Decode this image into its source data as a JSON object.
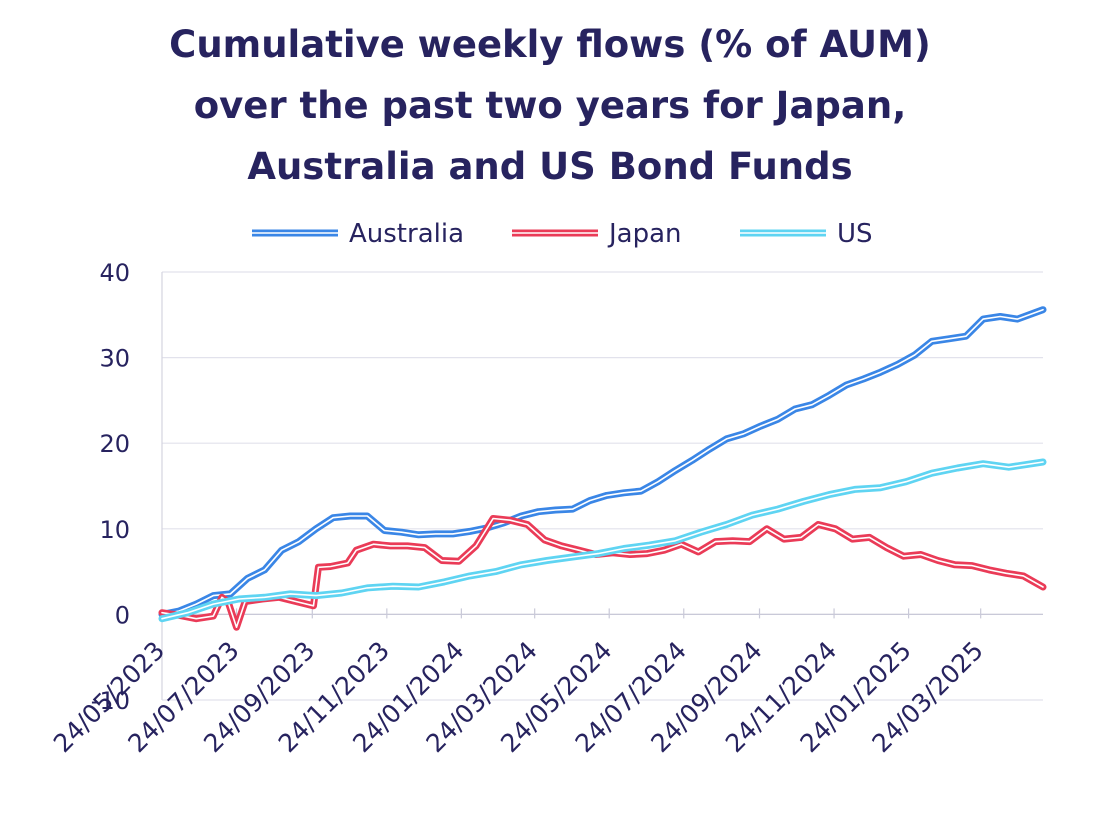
{
  "chart_data": {
    "type": "line",
    "title_lines": [
      "Cumulative weekly flows (% of AUM)",
      "over the past two years for Japan,",
      "Australia and US Bond Funds"
    ],
    "xlabel": "",
    "ylabel": "",
    "ylim": [
      -10,
      40
    ],
    "yticks": [
      -10,
      0,
      10,
      20,
      30,
      40
    ],
    "ytick_labels": [
      "-10",
      "0",
      "10",
      "20",
      "30",
      "40"
    ],
    "x_range": [
      "2023-05-24",
      "2025-05-14"
    ],
    "xticks": [
      "2023-05-24",
      "2023-07-24",
      "2023-09-24",
      "2023-11-24",
      "2024-01-24",
      "2024-03-24",
      "2024-05-24",
      "2024-07-24",
      "2024-09-24",
      "2024-11-24",
      "2025-01-24",
      "2025-03-24"
    ],
    "xtick_labels": [
      "24/05/2023",
      "24/07/2023",
      "24/09/2023",
      "24/11/2023",
      "24/01/2024",
      "24/03/2024",
      "24/05/2024",
      "24/07/2024",
      "24/09/2024",
      "24/11/2024",
      "24/01/2025",
      "24/03/2025"
    ],
    "grid": "horizontal",
    "legend_position": "top",
    "series": [
      {
        "name": "Australia",
        "color": "#3a86e6",
        "points": [
          [
            "2023-05-24",
            0.0
          ],
          [
            "2023-06-07",
            0.4
          ],
          [
            "2023-06-21",
            1.2
          ],
          [
            "2023-07-05",
            2.2
          ],
          [
            "2023-07-19",
            2.4
          ],
          [
            "2023-08-02",
            4.2
          ],
          [
            "2023-08-16",
            5.2
          ],
          [
            "2023-08-30",
            7.5
          ],
          [
            "2023-09-13",
            8.5
          ],
          [
            "2023-09-27",
            10.0
          ],
          [
            "2023-10-11",
            11.3
          ],
          [
            "2023-10-25",
            11.5
          ],
          [
            "2023-11-08",
            11.5
          ],
          [
            "2023-11-22",
            9.8
          ],
          [
            "2023-12-06",
            9.6
          ],
          [
            "2023-12-20",
            9.3
          ],
          [
            "2024-01-03",
            9.4
          ],
          [
            "2024-01-17",
            9.4
          ],
          [
            "2024-01-31",
            9.7
          ],
          [
            "2024-02-14",
            10.1
          ],
          [
            "2024-02-28",
            10.7
          ],
          [
            "2024-03-13",
            11.5
          ],
          [
            "2024-03-27",
            12.0
          ],
          [
            "2024-04-10",
            12.2
          ],
          [
            "2024-04-24",
            12.3
          ],
          [
            "2024-05-08",
            13.3
          ],
          [
            "2024-05-22",
            13.9
          ],
          [
            "2024-06-05",
            14.2
          ],
          [
            "2024-06-19",
            14.4
          ],
          [
            "2024-07-03",
            15.5
          ],
          [
            "2024-07-17",
            16.8
          ],
          [
            "2024-07-31",
            18.0
          ],
          [
            "2024-08-14",
            19.3
          ],
          [
            "2024-08-28",
            20.5
          ],
          [
            "2024-09-11",
            21.1
          ],
          [
            "2024-09-25",
            22.0
          ],
          [
            "2024-10-09",
            22.8
          ],
          [
            "2024-10-23",
            24.0
          ],
          [
            "2024-11-06",
            24.5
          ],
          [
            "2024-11-20",
            25.6
          ],
          [
            "2024-12-04",
            26.8
          ],
          [
            "2024-12-18",
            27.5
          ],
          [
            "2025-01-01",
            28.3
          ],
          [
            "2025-01-15",
            29.2
          ],
          [
            "2025-01-29",
            30.3
          ],
          [
            "2025-02-12",
            31.9
          ],
          [
            "2025-02-26",
            32.2
          ],
          [
            "2025-03-12",
            32.5
          ],
          [
            "2025-03-26",
            34.5
          ],
          [
            "2025-04-09",
            34.8
          ],
          [
            "2025-04-23",
            34.5
          ],
          [
            "2025-05-14",
            35.6
          ]
        ]
      },
      {
        "name": "Japan",
        "color": "#ea3b57",
        "points": [
          [
            "2023-05-24",
            0.2
          ],
          [
            "2023-06-07",
            -0.1
          ],
          [
            "2023-06-21",
            -0.5
          ],
          [
            "2023-07-05",
            -0.2
          ],
          [
            "2023-07-12",
            2.0
          ],
          [
            "2023-07-17",
            1.5
          ],
          [
            "2023-07-24",
            -1.5
          ],
          [
            "2023-07-31",
            1.5
          ],
          [
            "2023-08-14",
            1.8
          ],
          [
            "2023-08-28",
            2.0
          ],
          [
            "2023-09-11",
            1.5
          ],
          [
            "2023-09-25",
            1.0
          ],
          [
            "2023-09-29",
            5.5
          ],
          [
            "2023-10-09",
            5.6
          ],
          [
            "2023-10-23",
            6.0
          ],
          [
            "2023-10-30",
            7.5
          ],
          [
            "2023-11-13",
            8.2
          ],
          [
            "2023-11-27",
            8.0
          ],
          [
            "2023-12-11",
            8.0
          ],
          [
            "2023-12-25",
            7.8
          ],
          [
            "2024-01-08",
            6.3
          ],
          [
            "2024-01-22",
            6.2
          ],
          [
            "2024-02-05",
            8.0
          ],
          [
            "2024-02-19",
            11.2
          ],
          [
            "2024-03-04",
            11.0
          ],
          [
            "2024-03-18",
            10.5
          ],
          [
            "2024-04-01",
            8.7
          ],
          [
            "2024-04-15",
            8.0
          ],
          [
            "2024-04-29",
            7.5
          ],
          [
            "2024-05-13",
            7.0
          ],
          [
            "2024-05-27",
            7.2
          ],
          [
            "2024-06-10",
            7.0
          ],
          [
            "2024-06-24",
            7.1
          ],
          [
            "2024-07-08",
            7.5
          ],
          [
            "2024-07-22",
            8.2
          ],
          [
            "2024-08-05",
            7.3
          ],
          [
            "2024-08-19",
            8.5
          ],
          [
            "2024-09-02",
            8.6
          ],
          [
            "2024-09-16",
            8.5
          ],
          [
            "2024-09-30",
            10.0
          ],
          [
            "2024-10-14",
            8.8
          ],
          [
            "2024-10-28",
            9.0
          ],
          [
            "2024-11-11",
            10.5
          ],
          [
            "2024-11-25",
            10.0
          ],
          [
            "2024-12-09",
            8.8
          ],
          [
            "2024-12-23",
            9.0
          ],
          [
            "2025-01-06",
            7.8
          ],
          [
            "2025-01-20",
            6.8
          ],
          [
            "2025-02-03",
            7.0
          ],
          [
            "2025-02-17",
            6.3
          ],
          [
            "2025-03-03",
            5.8
          ],
          [
            "2025-03-17",
            5.7
          ],
          [
            "2025-03-31",
            5.2
          ],
          [
            "2025-04-14",
            4.8
          ],
          [
            "2025-04-28",
            4.5
          ],
          [
            "2025-05-14",
            3.2
          ]
        ]
      },
      {
        "name": "US",
        "color": "#5fd4f2",
        "points": [
          [
            "2023-05-24",
            -0.5
          ],
          [
            "2023-06-14",
            0.2
          ],
          [
            "2023-07-05",
            1.2
          ],
          [
            "2023-07-26",
            1.8
          ],
          [
            "2023-08-16",
            2.0
          ],
          [
            "2023-09-06",
            2.4
          ],
          [
            "2023-09-27",
            2.2
          ],
          [
            "2023-10-18",
            2.5
          ],
          [
            "2023-11-08",
            3.1
          ],
          [
            "2023-11-29",
            3.3
          ],
          [
            "2023-12-20",
            3.2
          ],
          [
            "2024-01-10",
            3.8
          ],
          [
            "2024-01-31",
            4.5
          ],
          [
            "2024-02-21",
            5.0
          ],
          [
            "2024-03-13",
            5.8
          ],
          [
            "2024-04-03",
            6.3
          ],
          [
            "2024-04-24",
            6.7
          ],
          [
            "2024-05-15",
            7.1
          ],
          [
            "2024-06-05",
            7.7
          ],
          [
            "2024-06-26",
            8.1
          ],
          [
            "2024-07-17",
            8.6
          ],
          [
            "2024-08-07",
            9.6
          ],
          [
            "2024-08-28",
            10.5
          ],
          [
            "2024-09-18",
            11.6
          ],
          [
            "2024-10-09",
            12.3
          ],
          [
            "2024-10-30",
            13.2
          ],
          [
            "2024-11-20",
            14.0
          ],
          [
            "2024-12-11",
            14.6
          ],
          [
            "2025-01-01",
            14.8
          ],
          [
            "2025-01-22",
            15.5
          ],
          [
            "2025-02-12",
            16.5
          ],
          [
            "2025-03-05",
            17.1
          ],
          [
            "2025-03-26",
            17.6
          ],
          [
            "2025-04-16",
            17.2
          ],
          [
            "2025-05-14",
            17.8
          ]
        ]
      }
    ]
  }
}
